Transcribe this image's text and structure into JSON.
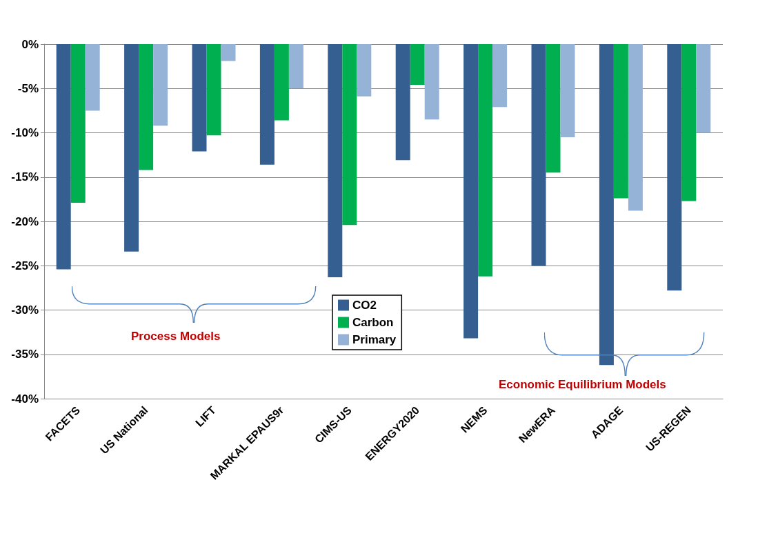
{
  "chart_data": {
    "type": "bar",
    "categories": [
      "FACETS",
      "US National",
      "LIFT",
      "MARKAL EPAUS9r",
      "CIMS-US",
      "ENERGY2020",
      "NEMS",
      "NewERA",
      "ADAGE",
      "US-REGEN"
    ],
    "series": [
      {
        "name": "CO2",
        "color": "#355f91",
        "values": [
          -25.4,
          -23.4,
          -12.1,
          -13.6,
          -26.3,
          -13.1,
          -33.2,
          -25.0,
          -36.2,
          -27.8
        ]
      },
      {
        "name": "Carbon",
        "color": "#00b050",
        "values": [
          -17.9,
          -14.2,
          -10.3,
          -8.6,
          -20.4,
          -4.6,
          -26.2,
          -14.5,
          -17.4,
          -17.7
        ]
      },
      {
        "name": "Primary",
        "color": "#95b3d7",
        "values": [
          -7.5,
          -9.2,
          -1.9,
          -5.0,
          -5.9,
          -8.5,
          -7.1,
          -10.5,
          -18.8,
          -10.0
        ]
      }
    ],
    "ylim": [
      -40,
      0
    ],
    "yticks": [
      {
        "value": -40,
        "label": "-40%"
      },
      {
        "value": -35,
        "label": "-35%"
      },
      {
        "value": -30,
        "label": "-30%"
      },
      {
        "value": -25,
        "label": "-25%"
      },
      {
        "value": -20,
        "label": "-20%"
      },
      {
        "value": -15,
        "label": "-15%"
      },
      {
        "value": -10,
        "label": "-10%"
      },
      {
        "value": -5,
        "label": "-5%"
      },
      {
        "value": 0,
        "label": "0%"
      }
    ],
    "grid": "y",
    "legend": "bottom",
    "annotations": [
      "Process Models",
      "Economic Equilibrium Models"
    ]
  }
}
